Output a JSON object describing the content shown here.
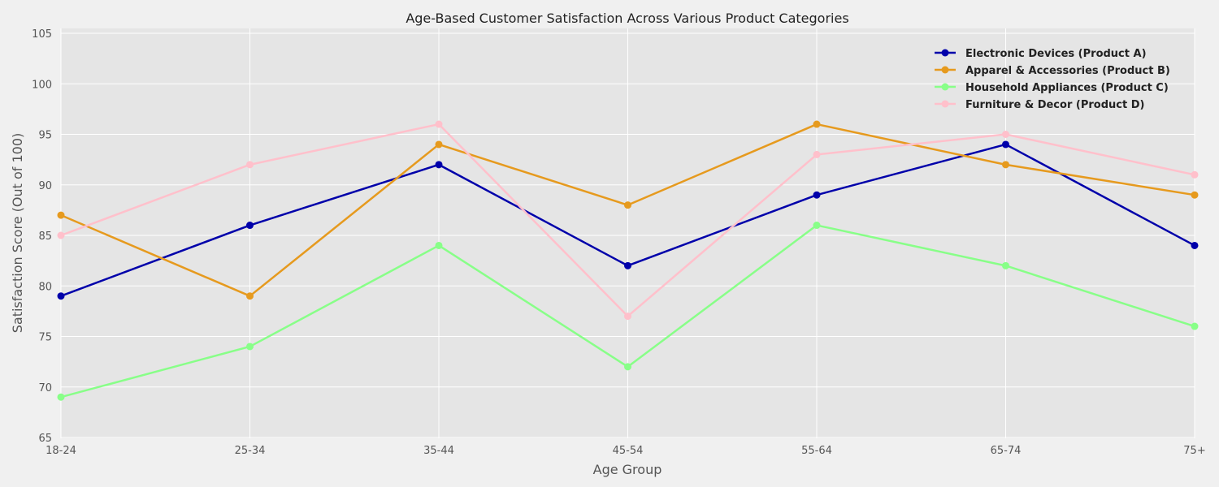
{
  "chart_data": {
    "type": "line",
    "title": "Age-Based Customer Satisfaction Across Various Product Categories",
    "xlabel": "Age Group",
    "ylabel": "Satisfaction Score (Out of 100)",
    "categories": [
      "18-24",
      "25-34",
      "35-44",
      "45-54",
      "55-64",
      "65-74",
      "75+"
    ],
    "ylim": [
      65,
      105
    ],
    "yticks": [
      65,
      70,
      75,
      80,
      85,
      90,
      95,
      100,
      105
    ],
    "grid": true,
    "legend_position": "top-right",
    "series": [
      {
        "name": "Electronic Devices (Product A)",
        "color": "#0000aa",
        "values": [
          79,
          86,
          92,
          82,
          89,
          94,
          84
        ]
      },
      {
        "name": "Apparel & Accessories (Product B)",
        "color": "#e69a1e",
        "values": [
          87,
          79,
          94,
          88,
          96,
          92,
          89
        ]
      },
      {
        "name": "Household Appliances (Product C)",
        "color": "#88ff88",
        "values": [
          69,
          74,
          84,
          72,
          86,
          82,
          76
        ]
      },
      {
        "name": "Furniture & Decor (Product D)",
        "color": "#ffc0cb",
        "values": [
          85,
          92,
          96,
          77,
          93,
          95,
          91
        ]
      }
    ]
  }
}
